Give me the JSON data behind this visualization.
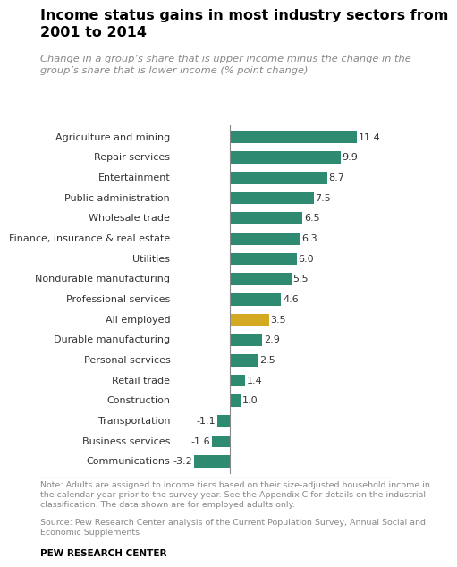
{
  "title": "Income status gains in most industry sectors from\n2001 to 2014",
  "subtitle": "Change in a group’s share that is upper income minus the change in the\ngroup’s share that is lower income (% point change)",
  "categories": [
    "Agriculture and mining",
    "Repair services",
    "Entertainment",
    "Public administration",
    "Wholesale trade",
    "Finance, insurance & real estate",
    "Utilities",
    "Nondurable manufacturing",
    "Professional services",
    "All employed",
    "Durable manufacturing",
    "Personal services",
    "Retail trade",
    "Construction",
    "Transportation",
    "Business services",
    "Communications"
  ],
  "values": [
    11.4,
    9.9,
    8.7,
    7.5,
    6.5,
    6.3,
    6.0,
    5.5,
    4.6,
    3.5,
    2.9,
    2.5,
    1.4,
    1.0,
    -1.1,
    -1.6,
    -3.2
  ],
  "bar_colors": [
    "#2e8b72",
    "#2e8b72",
    "#2e8b72",
    "#2e8b72",
    "#2e8b72",
    "#2e8b72",
    "#2e8b72",
    "#2e8b72",
    "#2e8b72",
    "#d4a820",
    "#2e8b72",
    "#2e8b72",
    "#2e8b72",
    "#2e8b72",
    "#2e8b72",
    "#2e8b72",
    "#2e8b72"
  ],
  "note": "Note: Adults are assigned to income tiers based on their size-adjusted household income in\nthe calendar year prior to the survey year. See the Appendix C for details on the industrial\nclassification. The data shown are for employed adults only.",
  "source": "Source: Pew Research Center analysis of the Current Population Survey, Annual Social and\nEconomic Supplements",
  "brand": "PEW RESEARCH CENTER",
  "title_color": "#000000",
  "subtitle_color": "#888888",
  "note_color": "#888888",
  "source_color": "#888888",
  "brand_color": "#000000",
  "bg_color": "#ffffff",
  "xlim": [
    -5,
    14
  ]
}
